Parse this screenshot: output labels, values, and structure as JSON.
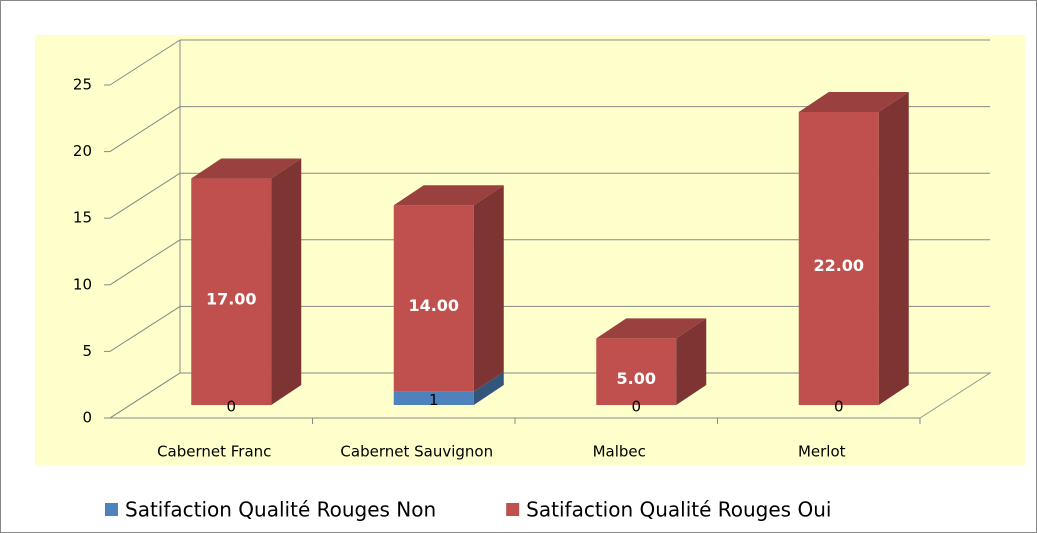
{
  "chart_data": {
    "type": "bar3d-stacked",
    "categories": [
      "Cabernet Franc",
      "Cabernet Sauvignon",
      "Malbec",
      "Merlot"
    ],
    "series": [
      {
        "name": "Satifaction Qualité Rouges Non",
        "color": "#4f81bd",
        "values": [
          0,
          1,
          0,
          0
        ],
        "value_labels": [
          "0",
          "1",
          "0",
          "0"
        ]
      },
      {
        "name": "Satifaction Qualité Rouges Oui",
        "color": "#c0504d",
        "values": [
          17,
          14,
          5,
          22
        ],
        "value_labels": [
          "17.00",
          "14.00",
          "5.00",
          "22.00"
        ]
      }
    ],
    "ylim": [
      0,
      25
    ],
    "yticks": [
      0,
      5,
      10,
      15,
      20,
      25
    ],
    "grid": true,
    "legend": "bottom"
  }
}
